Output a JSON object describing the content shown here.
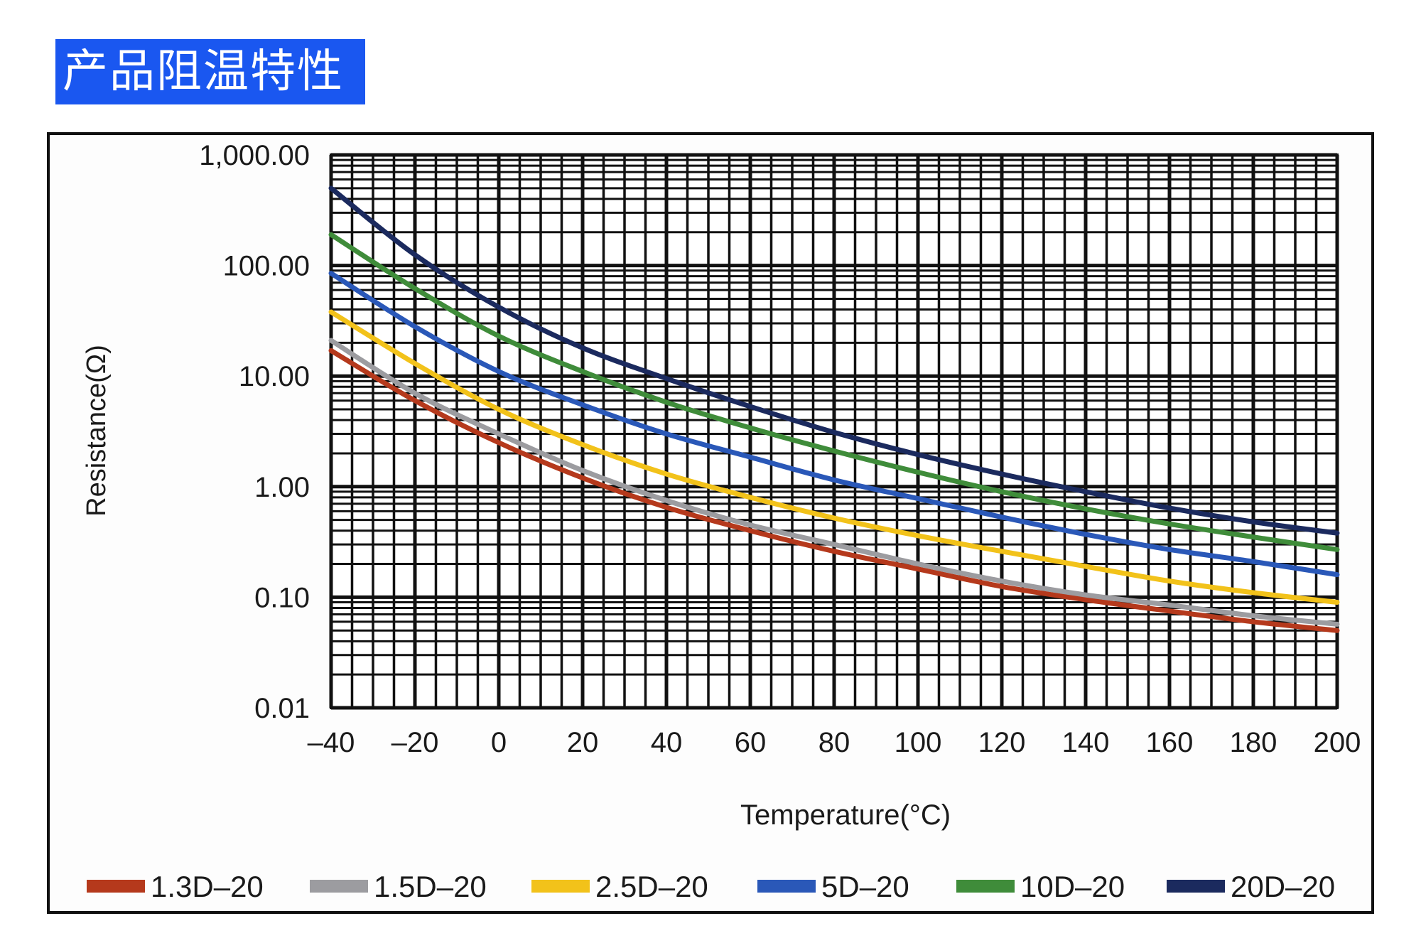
{
  "header": {
    "title": "产品阻温特性"
  },
  "chart_data": {
    "type": "line",
    "xlabel": "Temperature(°C)",
    "ylabel": "Resistance(Ω)",
    "x_ticks": [
      "–40",
      "–20",
      "0",
      "20",
      "40",
      "60",
      "80",
      "100",
      "120",
      "140",
      "160",
      "180",
      "200"
    ],
    "y_ticks": [
      {
        "value": 1000,
        "label": "1,000.00"
      },
      {
        "value": 100,
        "label": "100.00"
      },
      {
        "value": 10,
        "label": "10.00"
      },
      {
        "value": 1,
        "label": "1.00"
      },
      {
        "value": 0.1,
        "label": "0.10"
      },
      {
        "value": 0.01,
        "label": "0.01"
      }
    ],
    "xlim": [
      -40,
      200
    ],
    "ylim": [
      0.01,
      1000
    ],
    "yscale": "log",
    "grid": true,
    "legend_position": "bottom",
    "x": [
      -40,
      -20,
      0,
      20,
      40,
      60,
      80,
      100,
      120,
      140,
      160,
      180,
      200
    ],
    "series": [
      {
        "name": "1.3D–20",
        "color": "#b5391c",
        "values": [
          17,
          6,
          2.5,
          1.2,
          0.65,
          0.4,
          0.26,
          0.18,
          0.125,
          0.095,
          0.075,
          0.06,
          0.05
        ]
      },
      {
        "name": "1.5D–20",
        "color": "#9c9ca0",
        "values": [
          21,
          7,
          3,
          1.4,
          0.75,
          0.45,
          0.3,
          0.2,
          0.14,
          0.105,
          0.085,
          0.068,
          0.057
        ]
      },
      {
        "name": "2.5D–20",
        "color": "#f2c21a",
        "values": [
          38,
          13,
          5,
          2.4,
          1.3,
          0.8,
          0.52,
          0.36,
          0.26,
          0.19,
          0.14,
          0.11,
          0.09
        ]
      },
      {
        "name": "5D–20",
        "color": "#2a58b8",
        "values": [
          85,
          28,
          11,
          5.5,
          3,
          1.85,
          1.15,
          0.78,
          0.53,
          0.37,
          0.27,
          0.21,
          0.16
        ]
      },
      {
        "name": "10D–20",
        "color": "#3f8c3a",
        "values": [
          190,
          62,
          23,
          11,
          5.8,
          3.4,
          2.1,
          1.35,
          0.9,
          0.63,
          0.46,
          0.35,
          0.27
        ]
      },
      {
        "name": "20D–20",
        "color": "#1b2a5e",
        "values": [
          500,
          125,
          42,
          18,
          9.5,
          5.3,
          3.1,
          1.95,
          1.3,
          0.9,
          0.64,
          0.48,
          0.38
        ]
      }
    ]
  }
}
